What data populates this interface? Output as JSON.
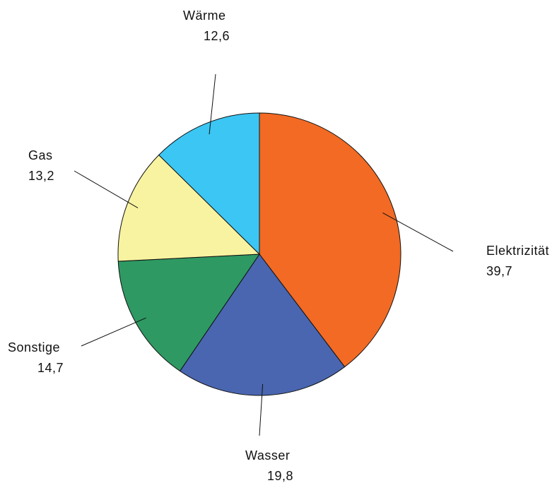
{
  "chart_data": {
    "type": "pie",
    "title": "",
    "categories": [
      "Elektrizität",
      "Wasser",
      "Sonstige",
      "Gas",
      "Wärme"
    ],
    "values": [
      39.7,
      19.8,
      14.7,
      13.2,
      12.6
    ],
    "value_labels": [
      "39,7",
      "19,8",
      "14,7",
      "13,2",
      "12,6"
    ],
    "colors": [
      "#F26A24",
      "#4A66B0",
      "#2E9963",
      "#F8F3A0",
      "#3CC6F3"
    ],
    "start": "top",
    "direction": "clockwise",
    "legend": "none"
  }
}
